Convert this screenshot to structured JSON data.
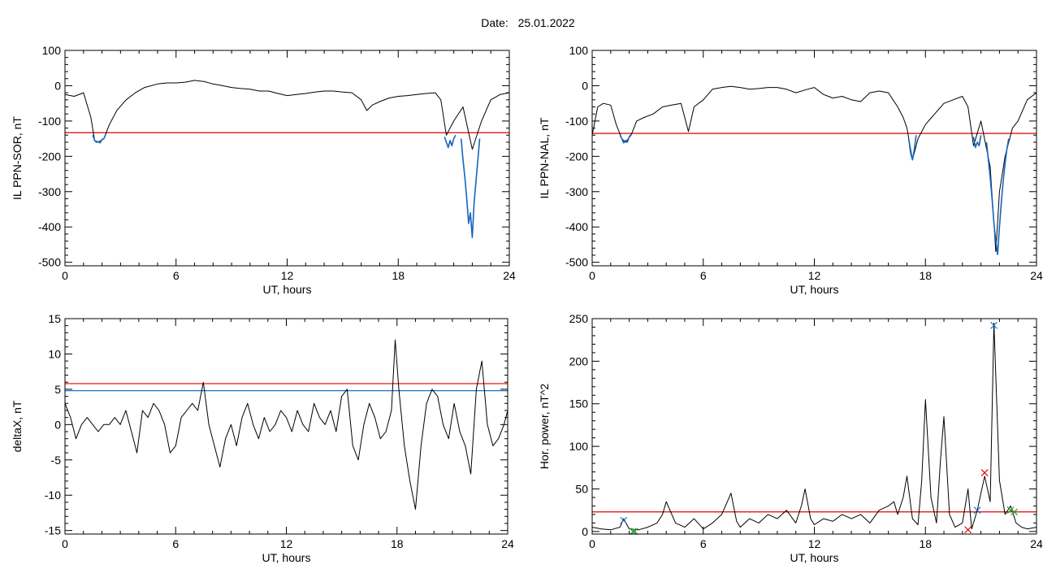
{
  "header": {
    "date_label": "Date:",
    "date_value": "25.01.2022"
  },
  "colors": {
    "threshold_red": "#e00000",
    "threshold_blue": "#1a73c8",
    "highlight_blue": "#1565c0",
    "marker_blue": "#1a73c8",
    "marker_red": "#e00000",
    "marker_green": "#2e9d2e",
    "line": "#000000"
  },
  "chart_data": [
    {
      "type": "line",
      "ylabel": "IL PPN-SOR, nT",
      "xlabel": "UT, hours",
      "xlim": [
        0,
        24
      ],
      "ylim": [
        -510,
        100
      ],
      "xticks": [
        0,
        6,
        12,
        18,
        24
      ],
      "yticks": [
        100,
        0,
        -100,
        -200,
        -300,
        -400,
        -500
      ],
      "grid": false,
      "series": [
        {
          "style": "black-line",
          "x": [
            0,
            0.5,
            1,
            1.4,
            1.6,
            1.8,
            2.1,
            2.4,
            2.8,
            3.3,
            3.8,
            4.3,
            5,
            5.5,
            6,
            6.5,
            7,
            7.5,
            8,
            8.5,
            9,
            9.5,
            10,
            10.5,
            11,
            11.5,
            12,
            12.5,
            13,
            13.5,
            14,
            14.5,
            15,
            15.5,
            16,
            16.3,
            16.6,
            17,
            17.5,
            18,
            18.5,
            19,
            19.5,
            20,
            20.3,
            20.6,
            21,
            21.5,
            22,
            22.5,
            23,
            23.5,
            24
          ],
          "y": [
            -25,
            -30,
            -20,
            -90,
            -155,
            -160,
            -150,
            -110,
            -70,
            -40,
            -20,
            -5,
            5,
            8,
            8,
            10,
            15,
            12,
            5,
            0,
            -5,
            -8,
            -10,
            -15,
            -15,
            -22,
            -28,
            -25,
            -22,
            -18,
            -15,
            -15,
            -18,
            -20,
            -40,
            -70,
            -55,
            -45,
            -35,
            -30,
            -28,
            -25,
            -22,
            -20,
            -40,
            -140,
            -100,
            -60,
            -180,
            -100,
            -40,
            -25,
            -20
          ]
        },
        {
          "style": "highlight",
          "x": [
            1.5,
            1.6,
            1.7,
            1.8,
            1.9,
            2.0,
            2.1,
            2.2
          ],
          "y": [
            -140,
            -155,
            -160,
            -158,
            -162,
            -152,
            -150,
            -138
          ]
        },
        {
          "style": "highlight",
          "x": [
            20.5,
            20.6,
            20.7,
            20.8,
            20.9,
            21.0,
            21.1
          ],
          "y": [
            -145,
            -160,
            -175,
            -155,
            -170,
            -150,
            -140
          ]
        },
        {
          "style": "highlight",
          "x": [
            21.4,
            21.5,
            21.6,
            21.7,
            21.8,
            21.9,
            22.0,
            22.1,
            22.2,
            22.3,
            22.4
          ],
          "y": [
            -150,
            -210,
            -260,
            -320,
            -390,
            -360,
            -430,
            -330,
            -270,
            -210,
            -150
          ]
        }
      ],
      "thresholds": [
        {
          "y": -133,
          "color": "red"
        }
      ]
    },
    {
      "type": "line",
      "ylabel": "IL PPN-NAL, nT",
      "xlabel": "UT, hours",
      "xlim": [
        0,
        24
      ],
      "ylim": [
        -510,
        100
      ],
      "xticks": [
        0,
        6,
        12,
        18,
        24
      ],
      "yticks": [
        100,
        0,
        -100,
        -200,
        -300,
        -400,
        -500
      ],
      "grid": false,
      "series": [
        {
          "style": "black-line",
          "x": [
            0,
            0.3,
            0.6,
            1,
            1.3,
            1.6,
            1.8,
            2.1,
            2.4,
            2.8,
            3.3,
            3.8,
            4.3,
            4.8,
            5.2,
            5.5,
            6,
            6.5,
            7,
            7.5,
            8,
            8.5,
            9,
            9.5,
            10,
            10.5,
            11,
            11.5,
            12,
            12.5,
            13,
            13.5,
            14,
            14.5,
            15,
            15.5,
            16,
            16.5,
            16.8,
            17,
            17.3,
            17.6,
            18,
            18.5,
            19,
            19.5,
            20,
            20.3,
            20.6,
            21,
            21.5,
            21.8,
            22,
            22.3,
            22.7,
            23,
            23.5,
            24
          ],
          "y": [
            -140,
            -60,
            -50,
            -55,
            -110,
            -150,
            -160,
            -140,
            -100,
            -90,
            -80,
            -60,
            -55,
            -50,
            -130,
            -60,
            -40,
            -10,
            -5,
            -2,
            -5,
            -10,
            -8,
            -5,
            -5,
            -10,
            -20,
            -12,
            -5,
            -25,
            -35,
            -30,
            -40,
            -45,
            -20,
            -15,
            -20,
            -60,
            -90,
            -120,
            -210,
            -150,
            -110,
            -80,
            -50,
            -40,
            -30,
            -60,
            -170,
            -100,
            -230,
            -470,
            -300,
            -200,
            -120,
            -100,
            -40,
            -20
          ]
        },
        {
          "style": "highlight",
          "x": [
            1.5,
            1.6,
            1.7,
            1.8,
            1.9,
            2.0,
            2.1
          ],
          "y": [
            -140,
            -150,
            -162,
            -155,
            -160,
            -145,
            -138
          ]
        },
        {
          "style": "highlight",
          "x": [
            17.1,
            17.2,
            17.3,
            17.4,
            17.5
          ],
          "y": [
            -150,
            -190,
            -210,
            -180,
            -140
          ]
        },
        {
          "style": "highlight",
          "x": [
            20.6,
            20.7,
            20.8,
            20.9,
            21.0
          ],
          "y": [
            -145,
            -175,
            -160,
            -170,
            -140
          ]
        },
        {
          "style": "highlight",
          "x": [
            21.3,
            21.4,
            21.5,
            21.6,
            21.7,
            21.8,
            21.9,
            22.0,
            22.1,
            22.2,
            22.3,
            22.4,
            22.5
          ],
          "y": [
            -160,
            -210,
            -260,
            -320,
            -390,
            -440,
            -478,
            -400,
            -330,
            -270,
            -220,
            -180,
            -150
          ]
        }
      ],
      "thresholds": [
        {
          "y": -135,
          "color": "red"
        }
      ]
    },
    {
      "type": "line",
      "ylabel": "deltaX, nT",
      "xlabel": "UT, hours",
      "xlim": [
        0,
        24
      ],
      "ylim": [
        -15.5,
        15
      ],
      "xticks": [
        0,
        6,
        12,
        18,
        24
      ],
      "yticks": [
        15,
        10,
        5,
        0,
        -5,
        -10,
        -15
      ],
      "grid": false,
      "series": [
        {
          "style": "black-line",
          "x": [
            0,
            0.3,
            0.6,
            0.9,
            1.2,
            1.5,
            1.8,
            2.1,
            2.4,
            2.7,
            3.0,
            3.3,
            3.6,
            3.9,
            4.2,
            4.5,
            4.8,
            5.1,
            5.4,
            5.7,
            6.0,
            6.3,
            6.6,
            6.9,
            7.2,
            7.5,
            7.8,
            8.1,
            8.4,
            8.7,
            9.0,
            9.3,
            9.6,
            9.9,
            10.2,
            10.5,
            10.8,
            11.1,
            11.4,
            11.7,
            12.0,
            12.3,
            12.6,
            12.9,
            13.2,
            13.5,
            13.8,
            14.1,
            14.4,
            14.7,
            15.0,
            15.3,
            15.6,
            15.9,
            16.2,
            16.5,
            16.8,
            17.1,
            17.4,
            17.7,
            17.9,
            18.1,
            18.4,
            18.7,
            19.0,
            19.3,
            19.6,
            19.9,
            20.2,
            20.5,
            20.8,
            21.1,
            21.4,
            21.7,
            22.0,
            22.3,
            22.6,
            22.9,
            23.2,
            23.5,
            23.8,
            24
          ],
          "y": [
            3,
            1,
            -2,
            0,
            1,
            0,
            -1,
            0,
            0,
            1,
            0,
            2,
            -1,
            -4,
            2,
            1,
            3,
            2,
            0,
            -4,
            -3,
            1,
            2,
            3,
            2,
            6,
            0,
            -3,
            -6,
            -2,
            0,
            -3,
            1,
            3,
            0,
            -2,
            1,
            -1,
            0,
            2,
            1,
            -1,
            2,
            0,
            -1,
            3,
            1,
            0,
            2,
            -1,
            4,
            5,
            -3,
            -5,
            0,
            3,
            1,
            -2,
            -1,
            2,
            12,
            5,
            -3,
            -8,
            -12,
            -3,
            3,
            5,
            4,
            0,
            -2,
            3,
            -1,
            -3,
            -7,
            5,
            9,
            0,
            -3,
            -2,
            0,
            2
          ]
        }
      ],
      "thresholds": [
        {
          "y": 5.8,
          "color": "red"
        },
        {
          "y": 4.8,
          "color": "blue"
        }
      ]
    },
    {
      "type": "line",
      "ylabel": "Hor. power, nT^2",
      "xlabel": "UT, hours",
      "xlim": [
        0,
        24
      ],
      "ylim": [
        -3,
        250
      ],
      "xticks": [
        0,
        6,
        12,
        18,
        24
      ],
      "yticks": [
        250,
        200,
        150,
        100,
        50,
        0
      ],
      "grid": false,
      "series": [
        {
          "style": "black-line",
          "x": [
            0,
            0.5,
            1,
            1.5,
            1.7,
            2,
            2.5,
            3,
            3.5,
            3.8,
            4,
            4.5,
            5,
            5.5,
            6,
            6.5,
            7,
            7.3,
            7.5,
            7.8,
            8,
            8.5,
            9,
            9.5,
            10,
            10.5,
            11,
            11.3,
            11.5,
            11.8,
            12,
            12.5,
            13,
            13.5,
            14,
            14.5,
            15,
            15.5,
            16,
            16.3,
            16.5,
            16.8,
            17,
            17.3,
            17.6,
            17.8,
            18,
            18.3,
            18.6,
            18.8,
            19,
            19.3,
            19.6,
            20,
            20.3,
            20.5,
            20.8,
            21,
            21.2,
            21.5,
            21.7,
            22,
            22.3,
            22.6,
            22.9,
            23.2,
            23.5,
            24
          ],
          "y": [
            5,
            3,
            2,
            5,
            15,
            3,
            2,
            5,
            10,
            20,
            35,
            10,
            5,
            15,
            3,
            10,
            20,
            35,
            45,
            12,
            5,
            15,
            10,
            20,
            15,
            25,
            10,
            30,
            50,
            15,
            8,
            15,
            12,
            20,
            15,
            20,
            10,
            25,
            30,
            35,
            20,
            40,
            65,
            15,
            8,
            60,
            155,
            40,
            10,
            80,
            135,
            20,
            5,
            10,
            50,
            3,
            25,
            45,
            65,
            35,
            245,
            60,
            20,
            30,
            10,
            5,
            3,
            5
          ]
        }
      ],
      "thresholds": [
        {
          "y": 23,
          "color": "red"
        }
      ],
      "markers": [
        {
          "x": 1.7,
          "y": 13,
          "color": "blue"
        },
        {
          "x": 2.2,
          "y": 0,
          "color": "green"
        },
        {
          "x": 2.3,
          "y": 0,
          "color": "green"
        },
        {
          "x": 20.3,
          "y": 2,
          "color": "red"
        },
        {
          "x": 20.8,
          "y": 25,
          "color": "blue"
        },
        {
          "x": 21.2,
          "y": 69,
          "color": "red"
        },
        {
          "x": 21.7,
          "y": 242,
          "color": "blue"
        },
        {
          "x": 22.6,
          "y": 25,
          "color": "green"
        },
        {
          "x": 22.8,
          "y": 23,
          "color": "green"
        }
      ]
    }
  ]
}
